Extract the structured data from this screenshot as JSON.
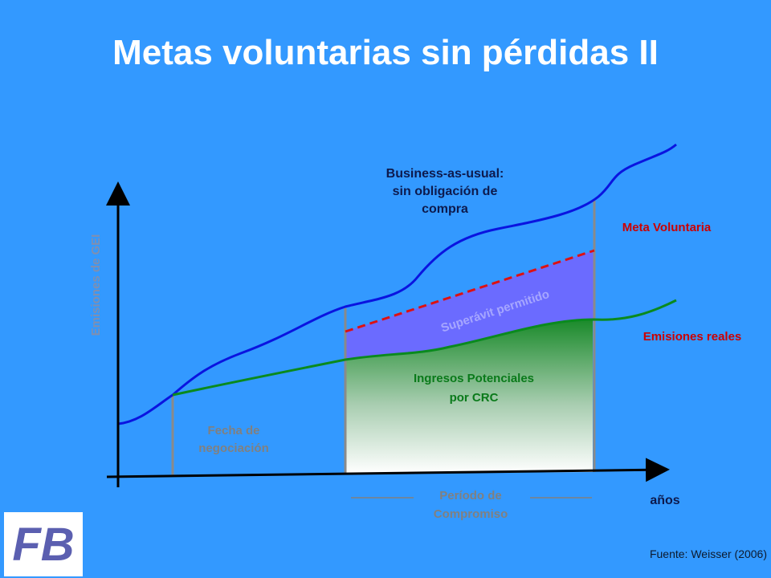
{
  "title": "Metas voluntarias sin pérdidas II",
  "y_axis_label": "Emisiones de GEI",
  "x_axis_label": "años",
  "bau_label": [
    "Business-as-usual:",
    "sin obligación de",
    "compra"
  ],
  "target_label": "Meta Voluntaria",
  "actual_label": "Emisiones reales",
  "surplus_label": "Superávit permitido",
  "revenue_label": [
    "Ingresos Potenciales",
    "por CRC"
  ],
  "negotiation_label": [
    "Fecha de",
    "negociación"
  ],
  "period_label": [
    "Período de",
    "Compromiso"
  ],
  "source": "Fuente: Weisser (2006)",
  "logo": "FB"
}
